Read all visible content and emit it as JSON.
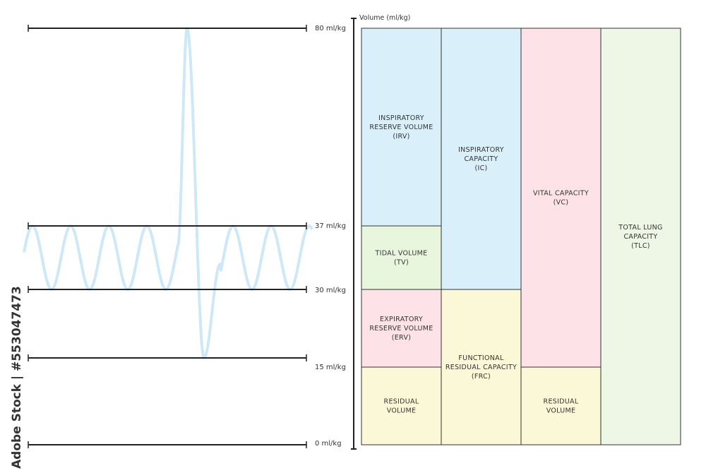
{
  "axis": {
    "title": "Volume (ml/kg)",
    "ticks": [
      {
        "value": 80,
        "label": "80 ml/kg"
      },
      {
        "value": 37,
        "label": "37 ml/kg"
      },
      {
        "value": 30,
        "label": "30 ml/kg"
      },
      {
        "value": 15,
        "label": "15 ml/kg"
      },
      {
        "value": 0,
        "label": "0 ml/kg"
      }
    ]
  },
  "columns": [
    {
      "name": "volumes",
      "boxes": [
        {
          "id": "irv",
          "from": 37,
          "to": 80,
          "color": "#d9f0fb",
          "lines": [
            "INSPIRATORY",
            "RESERVE VOLUME",
            "(IRV)"
          ]
        },
        {
          "id": "tv",
          "from": 30,
          "to": 37,
          "color": "#e9f6de",
          "lines": [
            "TIDAL VOLUME",
            "(TV)"
          ]
        },
        {
          "id": "erv",
          "from": 15,
          "to": 30,
          "color": "#fde2e8",
          "lines": [
            "EXPIRATORY",
            "RESERVE VOLUME",
            "(ERV)"
          ]
        },
        {
          "id": "rv",
          "from": 0,
          "to": 15,
          "color": "#fbf8d7",
          "lines": [
            "RESIDUAL",
            "VOLUME"
          ]
        }
      ]
    },
    {
      "name": "capacities-1",
      "boxes": [
        {
          "id": "ic",
          "from": 30,
          "to": 80,
          "color": "#d9f0fb",
          "lines": [
            "INSPIRATORY",
            "CAPACITY",
            "(IC)"
          ]
        },
        {
          "id": "frc",
          "from": 0,
          "to": 30,
          "color": "#fbf8d7",
          "lines": [
            "FUNCTIONAL",
            "RESIDUAL CAPACITY",
            "(FRC)"
          ]
        }
      ]
    },
    {
      "name": "capacities-2",
      "boxes": [
        {
          "id": "vc",
          "from": 15,
          "to": 80,
          "color": "#fde2e8",
          "lines": [
            "VITAL CAPACITY",
            "(VC)"
          ]
        },
        {
          "id": "rv2",
          "from": 0,
          "to": 15,
          "color": "#fbf8d7",
          "lines": [
            "RESIDUAL",
            "VOLUME"
          ]
        }
      ]
    },
    {
      "name": "total",
      "boxes": [
        {
          "id": "tlc",
          "from": 0,
          "to": 80,
          "color": "#eef6e6",
          "lines": [
            "TOTAL LUNG",
            "CAPACITY",
            "(TLC)"
          ]
        }
      ]
    }
  ],
  "spirogram": {
    "color": "#cde8f7",
    "levels": {
      "max_inspiration": 80,
      "tidal_top": 37,
      "tidal_bottom": 30,
      "max_expiration": 15
    }
  },
  "watermark": {
    "side_text": "Adobe Stock | #553047473"
  }
}
